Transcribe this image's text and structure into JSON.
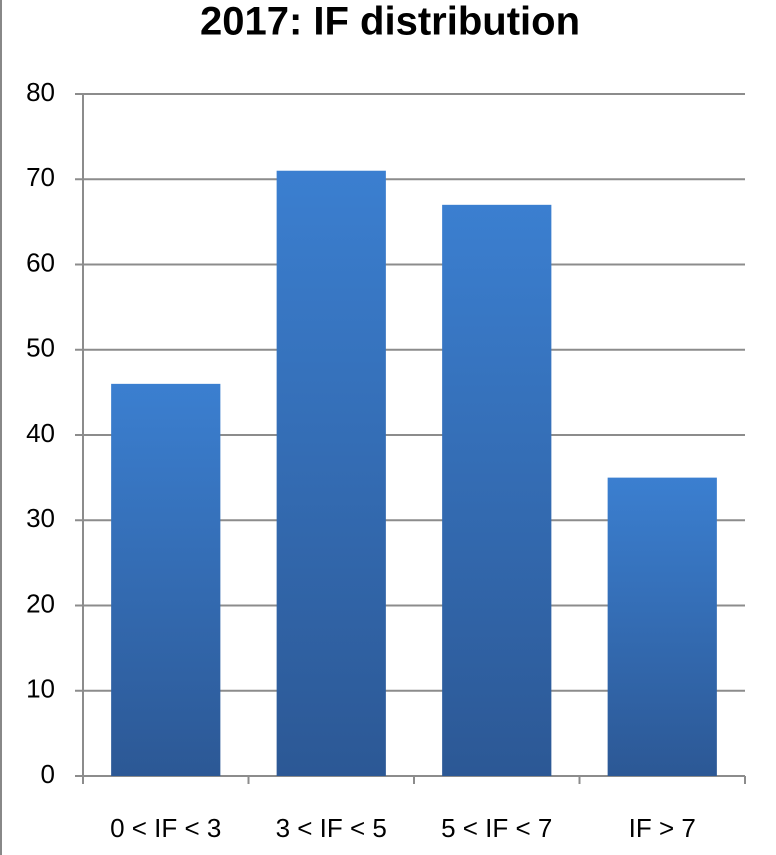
{
  "chart_data": {
    "type": "bar",
    "title": "2017: IF distribution",
    "categories": [
      "0  < IF < 3",
      "3  < IF < 5",
      "5  < IF < 7",
      "IF > 7"
    ],
    "values": [
      46,
      71,
      67,
      35
    ],
    "color": "#3a7bc8",
    "ylim": [
      0,
      80
    ],
    "yticks": [
      0,
      10,
      20,
      30,
      40,
      50,
      60,
      70,
      80
    ],
    "grid": true
  }
}
